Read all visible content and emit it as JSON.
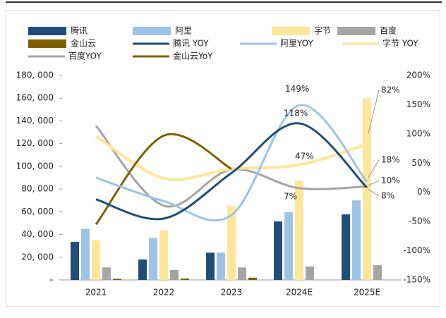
{
  "chart_data": {
    "type": "bar-line",
    "categories": [
      "2021",
      "2022",
      "2023",
      "2024E",
      "2025E"
    ],
    "series": [
      {
        "name": "腾讯",
        "type": "bar",
        "color": "#1f4e79",
        "values": [
          33500,
          18000,
          24000,
          51500,
          57700
        ]
      },
      {
        "name": "阿里",
        "type": "bar",
        "color": "#9dc3e6",
        "values": [
          45000,
          37000,
          24000,
          59600,
          70000
        ]
      },
      {
        "name": "字节",
        "type": "bar",
        "color": "#ffe699",
        "values": [
          35000,
          43500,
          65000,
          87500,
          160000
        ]
      },
      {
        "name": "百度",
        "type": "bar",
        "color": "#a5a5a5",
        "values": [
          11000,
          8700,
          11000,
          11800,
          13000
        ]
      },
      {
        "name": "金山云",
        "type": "bar",
        "color": "#7f6000",
        "values": [
          1000,
          1200,
          2000,
          null,
          null
        ]
      },
      {
        "name": "腾讯 YOY",
        "type": "line",
        "axis": "y2",
        "color": "#1f4e79",
        "values": [
          -12,
          -45,
          33,
          118,
          8
        ],
        "value_labels": [
          null,
          null,
          null,
          "118%",
          "8%"
        ]
      },
      {
        "name": "阿里YOY",
        "type": "line",
        "axis": "y2",
        "color": "#9dc3e6",
        "values": [
          25,
          -15,
          -39,
          149,
          18
        ],
        "value_labels": [
          null,
          null,
          null,
          "149%",
          "18%"
        ]
      },
      {
        "name": "字节 YOY",
        "type": "line",
        "axis": "y2",
        "color": "#ffe699",
        "values": [
          96,
          24,
          40,
          47,
          82
        ],
        "value_labels": [
          null,
          null,
          null,
          "47%",
          "82%"
        ]
      },
      {
        "name": "百度YOY",
        "type": "line",
        "axis": "y2",
        "color": "#a5a5a5",
        "values": [
          114,
          -23,
          39,
          7,
          10
        ],
        "value_labels": [
          null,
          null,
          null,
          "7%",
          "10%"
        ]
      },
      {
        "name": "金山云YoY",
        "type": "line",
        "axis": "y2",
        "color": "#7f6000",
        "values": [
          -55,
          97,
          40,
          null,
          null
        ]
      }
    ],
    "ylim": [
      0,
      180000
    ],
    "yticks": [
      {
        "value": 0,
        "label": "–"
      },
      {
        "value": 20000,
        "label": "20, 000"
      },
      {
        "value": 40000,
        "label": "40, 000"
      },
      {
        "value": 60000,
        "label": "60, 000"
      },
      {
        "value": 80000,
        "label": "80, 000"
      },
      {
        "value": 100000,
        "label": "100, 000"
      },
      {
        "value": 120000,
        "label": "120, 000"
      },
      {
        "value": 140000,
        "label": "140, 000"
      },
      {
        "value": 160000,
        "label": "160, 000"
      },
      {
        "value": 180000,
        "label": "180, 000"
      }
    ],
    "y2lim": [
      -150,
      200
    ],
    "y2ticks": [
      {
        "value": -150,
        "label": "-150%"
      },
      {
        "value": -100,
        "label": "-100%"
      },
      {
        "value": -50,
        "label": "-50%"
      },
      {
        "value": 0,
        "label": "0%"
      },
      {
        "value": 50,
        "label": "50%"
      },
      {
        "value": 100,
        "label": "100%"
      },
      {
        "value": 150,
        "label": "150%"
      },
      {
        "value": 200,
        "label": "200%"
      }
    ]
  }
}
